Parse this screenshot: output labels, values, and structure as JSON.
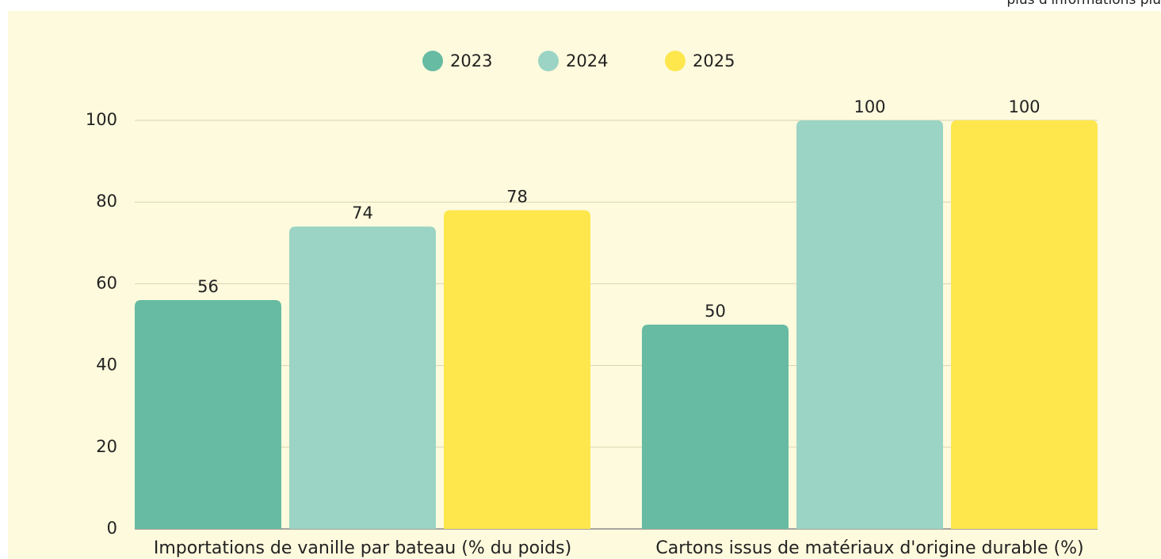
{
  "note": "plus d'informations plu",
  "chart_data": {
    "type": "bar",
    "categories": [
      "Importations de vanille par bateau (% du poids)",
      "Cartons issus de matériaux d'origine durable (%)"
    ],
    "series": [
      {
        "name": "2023",
        "color": "#66bba2",
        "values": [
          56,
          50
        ]
      },
      {
        "name": "2024",
        "color": "#9bd4c4",
        "values": [
          74,
          100
        ]
      },
      {
        "name": "2025",
        "color": "#fde74c",
        "values": [
          78,
          100
        ]
      }
    ],
    "ylim": [
      0,
      100
    ],
    "yticks": [
      0,
      20,
      40,
      60,
      80,
      100
    ],
    "grid": true,
    "legend": "top"
  }
}
